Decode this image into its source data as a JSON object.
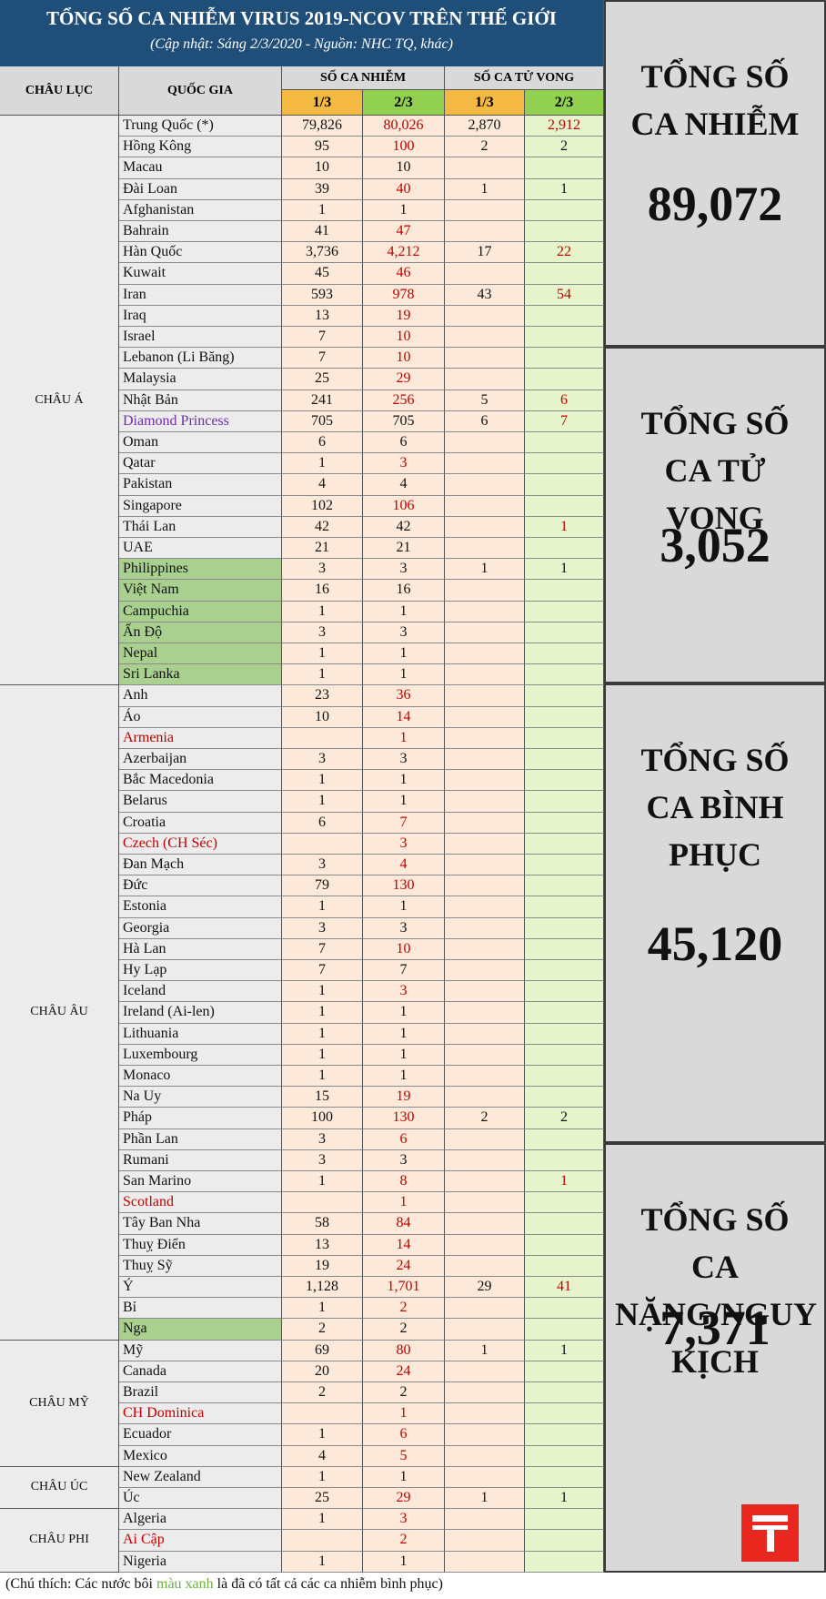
{
  "title": "TỔNG SỐ CA NHIỄM VIRUS 2019-NCOV TRÊN THẾ GIỚI",
  "subtitle": "(Cập nhật: Sáng 2/3/2020 - Nguồn: NHC TQ, khác)",
  "headers": {
    "continent": "CHÂU LỤC",
    "country": "QUỐC GIA",
    "cases": "SỐ CA NHIỄM",
    "deaths": "SỐ CA TỬ VONG",
    "dates": [
      "1/3",
      "2/3",
      "1/3",
      "2/3"
    ]
  },
  "groups": [
    {
      "name": "CHÂU Á",
      "rows": [
        {
          "country": "Trung Quốc (*)",
          "cases": [
            "79,826",
            "80,026"
          ],
          "deaths": [
            "2,870",
            "2,912"
          ]
        },
        {
          "country": "Hồng Kông",
          "cases": [
            "95",
            "100"
          ],
          "deaths": [
            "2",
            "2"
          ]
        },
        {
          "country": "Macau",
          "cases": [
            "10",
            "10"
          ],
          "deaths": [
            null,
            null
          ]
        },
        {
          "country": "Đài Loan",
          "cases": [
            "39",
            "40"
          ],
          "deaths": [
            "1",
            "1"
          ]
        },
        {
          "country": "Afghanistan",
          "cases": [
            "1",
            "1"
          ],
          "deaths": [
            null,
            null
          ]
        },
        {
          "country": "Bahrain",
          "cases": [
            "41",
            "47"
          ],
          "deaths": [
            null,
            null
          ]
        },
        {
          "country": "Hàn Quốc",
          "cases": [
            "3,736",
            "4,212"
          ],
          "deaths": [
            "17",
            "22"
          ]
        },
        {
          "country": "Kuwait",
          "cases": [
            "45",
            "46"
          ],
          "deaths": [
            null,
            null
          ]
        },
        {
          "country": "Iran",
          "cases": [
            "593",
            "978"
          ],
          "deaths": [
            "43",
            "54"
          ]
        },
        {
          "country": "Iraq",
          "cases": [
            "13",
            "19"
          ],
          "deaths": [
            null,
            null
          ]
        },
        {
          "country": "Israel",
          "cases": [
            "7",
            "10"
          ],
          "deaths": [
            null,
            null
          ]
        },
        {
          "country": "Lebanon (Li Băng)",
          "cases": [
            "7",
            "10"
          ],
          "deaths": [
            null,
            null
          ]
        },
        {
          "country": "Malaysia",
          "cases": [
            "25",
            "29"
          ],
          "deaths": [
            null,
            null
          ]
        },
        {
          "country": "Nhật Bản",
          "cases": [
            "241",
            "256"
          ],
          "deaths": [
            "5",
            "6"
          ]
        },
        {
          "country": "Diamond Princess",
          "name_color": "#7030a0",
          "cases": [
            "705",
            "705"
          ],
          "deaths": [
            "6",
            "7"
          ]
        },
        {
          "country": "Oman",
          "cases": [
            "6",
            "6"
          ],
          "deaths": [
            null,
            null
          ]
        },
        {
          "country": "Qatar",
          "cases": [
            "1",
            "3"
          ],
          "deaths": [
            null,
            null
          ]
        },
        {
          "country": "Pakistan",
          "cases": [
            "4",
            "4"
          ],
          "deaths": [
            null,
            null
          ]
        },
        {
          "country": "Singapore",
          "cases": [
            "102",
            "106"
          ],
          "deaths": [
            null,
            null
          ]
        },
        {
          "country": "Thái Lan",
          "cases": [
            "42",
            "42"
          ],
          "deaths": [
            null,
            "1"
          ]
        },
        {
          "country": "UAE",
          "cases": [
            "21",
            "21"
          ],
          "deaths": [
            null,
            null
          ]
        },
        {
          "country": "Philippines",
          "fill": "#a9d08e",
          "cases": [
            "3",
            "3"
          ],
          "deaths": [
            "1",
            "1"
          ]
        },
        {
          "country": "Việt Nam",
          "fill": "#a9d08e",
          "cases": [
            "16",
            "16"
          ],
          "deaths": [
            null,
            null
          ]
        },
        {
          "country": "Campuchia",
          "fill": "#a9d08e",
          "cases": [
            "1",
            "1"
          ],
          "deaths": [
            null,
            null
          ]
        },
        {
          "country": "Ấn Độ",
          "fill": "#a9d08e",
          "cases": [
            "3",
            "3"
          ],
          "deaths": [
            null,
            null
          ]
        },
        {
          "country": "Nepal",
          "fill": "#a9d08e",
          "cases": [
            "1",
            "1"
          ],
          "deaths": [
            null,
            null
          ]
        },
        {
          "country": "Sri Lanka",
          "fill": "#a9d08e",
          "cases": [
            "1",
            "1"
          ],
          "deaths": [
            null,
            null
          ]
        }
      ]
    },
    {
      "name": "CHÂU ÂU",
      "rows": [
        {
          "country": "Anh",
          "cases": [
            "23",
            "36"
          ],
          "deaths": [
            null,
            null
          ]
        },
        {
          "country": "Áo",
          "cases": [
            "10",
            "14"
          ],
          "deaths": [
            null,
            null
          ]
        },
        {
          "country": "Armenia",
          "name_color": "#c00000",
          "cases": [
            null,
            "1"
          ],
          "deaths": [
            null,
            null
          ]
        },
        {
          "country": "Azerbaijan",
          "cases": [
            "3",
            "3"
          ],
          "deaths": [
            null,
            null
          ]
        },
        {
          "country": "Bắc Macedonia",
          "cases": [
            "1",
            "1"
          ],
          "deaths": [
            null,
            null
          ]
        },
        {
          "country": "Belarus",
          "cases": [
            "1",
            "1"
          ],
          "deaths": [
            null,
            null
          ]
        },
        {
          "country": "Croatia",
          "cases": [
            "6",
            "7"
          ],
          "deaths": [
            null,
            null
          ]
        },
        {
          "country": "Czech (CH Séc)",
          "name_color": "#c00000",
          "cases": [
            null,
            "3"
          ],
          "deaths": [
            null,
            null
          ]
        },
        {
          "country": "Đan Mạch",
          "cases": [
            "3",
            "4"
          ],
          "deaths": [
            null,
            null
          ]
        },
        {
          "country": "Đức",
          "cases": [
            "79",
            "130"
          ],
          "deaths": [
            null,
            null
          ]
        },
        {
          "country": "Estonia",
          "cases": [
            "1",
            "1"
          ],
          "deaths": [
            null,
            null
          ]
        },
        {
          "country": "Georgia",
          "cases": [
            "3",
            "3"
          ],
          "deaths": [
            null,
            null
          ]
        },
        {
          "country": "Hà Lan",
          "cases": [
            "7",
            "10"
          ],
          "deaths": [
            null,
            null
          ]
        },
        {
          "country": "Hy Lạp",
          "cases": [
            "7",
            "7"
          ],
          "deaths": [
            null,
            null
          ]
        },
        {
          "country": "Iceland",
          "cases": [
            "1",
            "3"
          ],
          "deaths": [
            null,
            null
          ]
        },
        {
          "country": "Ireland (Ai-len)",
          "cases": [
            "1",
            "1"
          ],
          "deaths": [
            null,
            null
          ]
        },
        {
          "country": "Lithuania",
          "cases": [
            "1",
            "1"
          ],
          "deaths": [
            null,
            null
          ]
        },
        {
          "country": "Luxembourg",
          "cases": [
            "1",
            "1"
          ],
          "deaths": [
            null,
            null
          ]
        },
        {
          "country": "Monaco",
          "cases": [
            "1",
            "1"
          ],
          "deaths": [
            null,
            null
          ]
        },
        {
          "country": "Na Uy",
          "cases": [
            "15",
            "19"
          ],
          "deaths": [
            null,
            null
          ]
        },
        {
          "country": "Pháp",
          "cases": [
            "100",
            "130"
          ],
          "deaths": [
            "2",
            "2"
          ]
        },
        {
          "country": "Phần Lan",
          "cases": [
            "3",
            "6"
          ],
          "deaths": [
            null,
            null
          ]
        },
        {
          "country": "Rumani",
          "cases": [
            "3",
            "3"
          ],
          "deaths": [
            null,
            null
          ]
        },
        {
          "country": "San Marino",
          "cases": [
            "1",
            "8"
          ],
          "deaths": [
            null,
            "1"
          ]
        },
        {
          "country": "Scotland",
          "name_color": "#c00000",
          "cases": [
            null,
            "1"
          ],
          "deaths": [
            null,
            null
          ]
        },
        {
          "country": "Tây Ban Nha",
          "cases": [
            "58",
            "84"
          ],
          "deaths": [
            null,
            null
          ]
        },
        {
          "country": "Thuỵ Điển",
          "cases": [
            "13",
            "14"
          ],
          "deaths": [
            null,
            null
          ]
        },
        {
          "country": "Thuỵ Sỹ",
          "cases": [
            "19",
            "24"
          ],
          "deaths": [
            null,
            null
          ]
        },
        {
          "country": "Ý",
          "cases": [
            "1,128",
            "1,701"
          ],
          "deaths": [
            "29",
            "41"
          ]
        },
        {
          "country": "Bỉ",
          "cases": [
            "1",
            "2"
          ],
          "deaths": [
            null,
            null
          ]
        },
        {
          "country": "Nga",
          "fill": "#a9d08e",
          "cases": [
            "2",
            "2"
          ],
          "deaths": [
            null,
            null
          ]
        }
      ]
    },
    {
      "name": "CHÂU MỸ",
      "rows": [
        {
          "country": "Mỹ",
          "cases": [
            "69",
            "80"
          ],
          "deaths": [
            "1",
            "1"
          ]
        },
        {
          "country": "Canada",
          "cases": [
            "20",
            "24"
          ],
          "deaths": [
            null,
            null
          ]
        },
        {
          "country": "Brazil",
          "cases": [
            "2",
            "2"
          ],
          "deaths": [
            null,
            null
          ]
        },
        {
          "country": "CH Dominica",
          "name_color": "#c00000",
          "cases": [
            null,
            "1"
          ],
          "deaths": [
            null,
            null
          ]
        },
        {
          "country": "Ecuador",
          "cases": [
            "1",
            "6"
          ],
          "deaths": [
            null,
            null
          ]
        },
        {
          "country": "Mexico",
          "cases": [
            "4",
            "5"
          ],
          "deaths": [
            null,
            null
          ]
        }
      ]
    },
    {
      "name": "CHÂU ÚC",
      "rows": [
        {
          "country": "New Zealand",
          "cases": [
            "1",
            "1"
          ],
          "deaths": [
            null,
            null
          ]
        },
        {
          "country": "Úc",
          "cases": [
            "25",
            "29"
          ],
          "deaths": [
            "1",
            "1"
          ]
        }
      ]
    },
    {
      "name": "CHÂU PHI",
      "rows": [
        {
          "country": "Algeria",
          "cases": [
            "1",
            "3"
          ],
          "deaths": [
            null,
            null
          ]
        },
        {
          "country": "Ai Cập",
          "name_color": "#c00000",
          "cases": [
            null,
            "2"
          ],
          "deaths": [
            null,
            null
          ]
        },
        {
          "country": "Nigeria",
          "cases": [
            "1",
            "1"
          ],
          "deaths": [
            null,
            null
          ]
        }
      ]
    }
  ],
  "totals": [
    {
      "label": "TỔNG SỐ CA NHIỄM",
      "value": "89,072"
    },
    {
      "label": "TỔNG SỐ CA TỬ VONG",
      "value": "3,052"
    },
    {
      "label": "TỔNG SỐ CA BÌNH PHỤC",
      "value": "45,120"
    },
    {
      "label": "TỔNG SỐ CA NẶNG/NGUY KỊCH",
      "value": "7,371"
    }
  ],
  "footnote": [
    "(Chú thích: Các nước bôi ",
    "màu xanh",
    " là đã có tất cả các ca nhiễm bình phục)"
  ]
}
